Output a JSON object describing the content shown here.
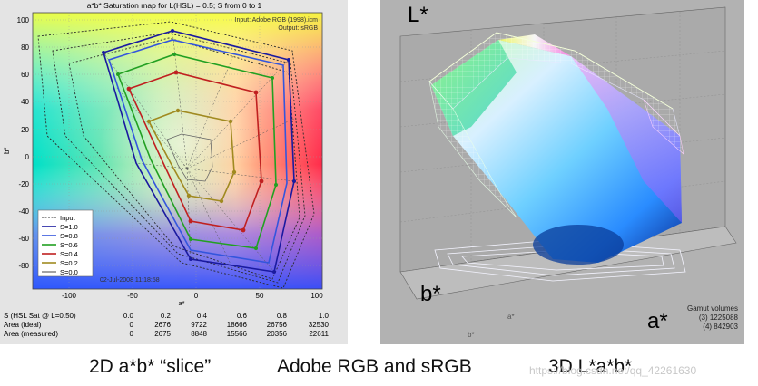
{
  "left_chart": {
    "title": "a*b* Saturation map for L(HSL) = 0.5;  S from 0 to 1",
    "input_label": "Input:  Adobe RGB (1998).icm",
    "output_label": "Output:  sRGB",
    "xlabel": "a*",
    "ylabel": "b*",
    "date": "02-Jul-2008 11:18:58",
    "x_ticks": [
      "-100",
      "-50",
      "0",
      "50",
      "100"
    ],
    "y_ticks": [
      "100",
      "80",
      "60",
      "40",
      "20",
      "0",
      "-20",
      "-40",
      "-60",
      "-80"
    ],
    "legend": [
      {
        "label": "Input",
        "color": "#333333",
        "dashed": true
      },
      {
        "label": "S=1.0",
        "color": "#1a1aa0",
        "dashed": false
      },
      {
        "label": "S=0.8",
        "color": "#3355dd",
        "dashed": false
      },
      {
        "label": "S=0.6",
        "color": "#22a022",
        "dashed": false
      },
      {
        "label": "S=0.4",
        "color": "#c02020",
        "dashed": false
      },
      {
        "label": "S=0.2",
        "color": "#a08a20",
        "dashed": false
      },
      {
        "label": "S=0.0",
        "color": "#666666",
        "dashed": false
      }
    ],
    "table": {
      "header": [
        "S (HSL Sat @ L=0.50)",
        "0.0",
        "0.2",
        "0.4",
        "0.6",
        "0.8",
        "1.0"
      ],
      "rows": [
        [
          "Area (ideal)",
          "0",
          "2676",
          "9722",
          "18666",
          "26756",
          "32530"
        ],
        [
          "Area (measured)",
          "0",
          "2675",
          "8848",
          "15566",
          "20356",
          "22611"
        ]
      ]
    }
  },
  "right_chart": {
    "l_label": "L*",
    "b_label": "b*",
    "a_label": "a*",
    "gamut_title": "Gamut volumes",
    "gamut_lines": [
      "(3)  1225088",
      "(4)  842903"
    ],
    "small_a": "a*",
    "small_b": "b*"
  },
  "captions": {
    "slice": "2D a*b* “slice”",
    "gamuts": "Adobe RGB and sRGB",
    "three_d": "3D L*a*b*",
    "watermark": "https://blog.csdn.net/qq_42261630"
  }
}
